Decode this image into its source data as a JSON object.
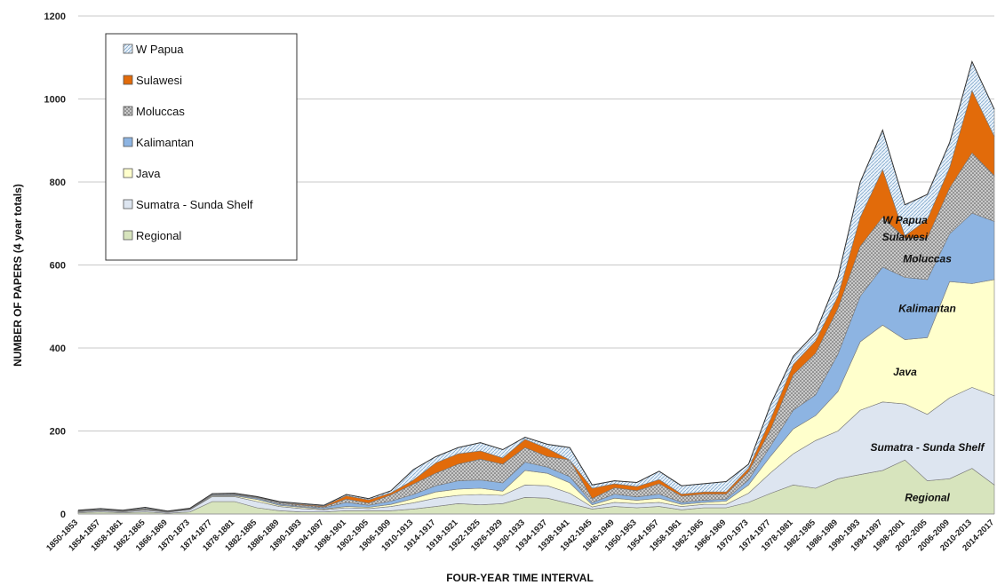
{
  "chart_data": {
    "type": "area",
    "stacked": true,
    "title": "",
    "xlabel": "FOUR-YEAR TIME INTERVAL",
    "ylabel": "NUMBER OF PAPERS (4 year totals)",
    "ylim": [
      0,
      1200
    ],
    "yticks": [
      0,
      200,
      400,
      600,
      800,
      1000,
      1200
    ],
    "grid": "horizontal",
    "legend": "top-left",
    "categories": [
      "1850-1853",
      "1854-1857",
      "1858-1861",
      "1862-1865",
      "1866-1869",
      "1870-1873",
      "1874-1877",
      "1878-1881",
      "1882-1885",
      "1886-1889",
      "1890-1893",
      "1894-1897",
      "1898-1901",
      "1902-1905",
      "1906-1909",
      "1910-1913",
      "1914-1917",
      "1918-1921",
      "1922-1925",
      "1926-1929",
      "1930-1933",
      "1934-1937",
      "1938-1941",
      "1942-1945",
      "1946-1949",
      "1950-1953",
      "1954-1957",
      "1958-1961",
      "1962-1965",
      "1966-1969",
      "1970-1973",
      "1974-1977",
      "1978-1981",
      "1982-1985",
      "1986-1989",
      "1990-1993",
      "1994-1997",
      "1998-2001",
      "2002-2005",
      "2006-2009",
      "2010-2013",
      "2014-2017"
    ],
    "series": [
      {
        "name": "Regional",
        "color": "#d7e4bd",
        "label": "Regional",
        "values": [
          3,
          5,
          3,
          5,
          2,
          5,
          30,
          30,
          15,
          8,
          5,
          5,
          8,
          8,
          8,
          12,
          18,
          25,
          22,
          25,
          40,
          38,
          25,
          12,
          18,
          15,
          18,
          10,
          15,
          15,
          28,
          50,
          70,
          62,
          85,
          95,
          105,
          130,
          80,
          85,
          110,
          70
        ]
      },
      {
        "name": "Sumatra - Sunda Shelf",
        "color": "#dde5f0",
        "label": "Sumatra - Sunda Shelf",
        "values": [
          2,
          3,
          2,
          4,
          2,
          5,
          12,
          12,
          15,
          10,
          8,
          5,
          7,
          5,
          10,
          15,
          20,
          20,
          25,
          20,
          30,
          30,
          25,
          5,
          10,
          10,
          10,
          8,
          8,
          8,
          22,
          50,
          75,
          115,
          115,
          155,
          165,
          135,
          160,
          195,
          195,
          215
        ]
      },
      {
        "name": "Java",
        "color": "#ffffcc",
        "label": "Java",
        "values": [
          1,
          1,
          1,
          2,
          1,
          1,
          2,
          2,
          5,
          3,
          3,
          2,
          3,
          3,
          5,
          10,
          15,
          15,
          15,
          10,
          35,
          30,
          25,
          5,
          10,
          8,
          10,
          5,
          5,
          8,
          20,
          40,
          60,
          60,
          95,
          165,
          185,
          155,
          185,
          280,
          250,
          280
        ]
      },
      {
        "name": "Kalimantan",
        "color": "#8db4e2",
        "label": "Kalimantan",
        "values": [
          1,
          1,
          1,
          1,
          1,
          1,
          2,
          2,
          3,
          3,
          2,
          3,
          10,
          5,
          8,
          10,
          15,
          20,
          20,
          20,
          20,
          15,
          15,
          5,
          10,
          8,
          10,
          5,
          5,
          5,
          12,
          25,
          45,
          50,
          90,
          110,
          140,
          150,
          140,
          115,
          170,
          140
        ]
      },
      {
        "name": "Moluccas",
        "color": "#a6a6a6",
        "label": "Moluccas",
        "values": [
          1,
          1,
          1,
          1,
          0,
          1,
          1,
          1,
          2,
          3,
          3,
          2,
          8,
          5,
          15,
          25,
          30,
          40,
          50,
          45,
          35,
          25,
          40,
          10,
          15,
          15,
          25,
          15,
          15,
          12,
          20,
          40,
          85,
          100,
          110,
          120,
          120,
          95,
          100,
          110,
          145,
          110
        ]
      },
      {
        "name": "Sulawesi",
        "color": "#e26b0a",
        "label": "Sulawesi",
        "values": [
          0,
          0,
          0,
          1,
          0,
          0,
          0,
          1,
          1,
          1,
          2,
          2,
          8,
          8,
          5,
          10,
          25,
          25,
          20,
          15,
          20,
          20,
          0,
          25,
          10,
          10,
          10,
          5,
          5,
          5,
          8,
          25,
          25,
          30,
          30,
          70,
          115,
          5,
          45,
          50,
          150,
          95
        ]
      },
      {
        "name": "W Papua",
        "color": "#dbe8f3",
        "label": "W Papua",
        "values": [
          1,
          2,
          1,
          2,
          1,
          1,
          2,
          2,
          1,
          2,
          2,
          2,
          3,
          3,
          5,
          25,
          15,
          15,
          20,
          20,
          5,
          10,
          30,
          8,
          7,
          10,
          20,
          20,
          20,
          25,
          10,
          35,
          20,
          20,
          45,
          85,
          95,
          75,
          60,
          60,
          70,
          65
        ]
      }
    ]
  }
}
